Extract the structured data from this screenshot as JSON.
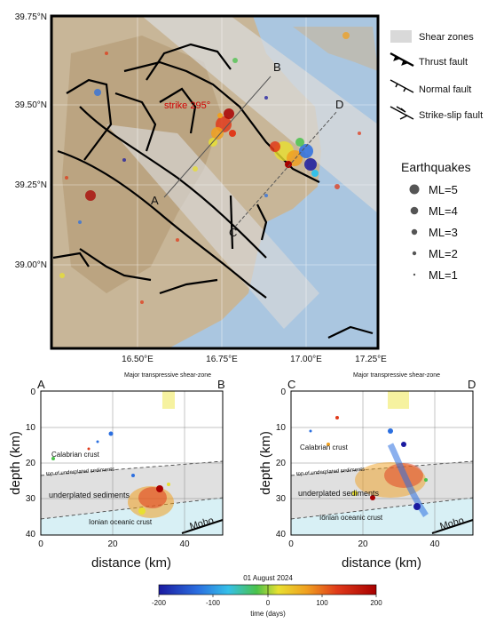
{
  "map": {
    "lat_labels": [
      "39.75°N",
      "39.50°N",
      "39.25°N",
      "39.00°N"
    ],
    "lon_labels": [
      "16.50°E",
      "16.75°E",
      "17.00°E",
      "17.25°E"
    ],
    "profile_labels": [
      "A",
      "B",
      "C",
      "D"
    ],
    "strike_label": "strike 295°"
  },
  "legend": {
    "shear_zones": "Shear zones",
    "thrust": "Thrust fault",
    "normal": "Normal fault",
    "strike_slip": "Strike-slip fault",
    "earthquakes_title": "Earthquakes",
    "magnitudes": [
      "ML=5",
      "ML=4",
      "ML=3",
      "ML=2",
      "ML=1"
    ]
  },
  "sections": [
    {
      "start": "A",
      "end": "B",
      "shear_zone_label": "Major transpressive shear-zone",
      "x_ticks": [
        "0",
        "20",
        "40"
      ],
      "y_ticks": [
        "0",
        "10",
        "20",
        "30",
        "40"
      ],
      "xlabel": "distance (km)",
      "ylabel": "depth (km)",
      "labels": {
        "crust": "Calabrian crust",
        "top_sed": "top of underplated sediments",
        "sed": "underplated sediments",
        "ionian": "Ionian oceanic crust",
        "moho": "Moho"
      }
    },
    {
      "start": "C",
      "end": "D",
      "shear_zone_label": "Major transpressive shear-zone",
      "x_ticks": [
        "0",
        "20",
        "40"
      ],
      "y_ticks": [
        "0",
        "10",
        "20",
        "30",
        "40"
      ],
      "xlabel": "distance (km)",
      "ylabel": "depth (km)",
      "labels": {
        "crust": "Calabrian crust",
        "top_sed": "top of underplated sediments",
        "sed": "underplated sediments",
        "ionian": "Ionian oceanic crust",
        "moho": "Moho"
      }
    }
  ],
  "colorbar": {
    "date": "01 August 2024",
    "ticks": [
      "-200",
      "-100",
      "0",
      "100",
      "200"
    ],
    "label": "time (days)",
    "colors": [
      "#1a1aa0",
      "#2b6fe0",
      "#35c0e8",
      "#4ac24a",
      "#e8e030",
      "#f0a020",
      "#e03a1a",
      "#a80000"
    ]
  }
}
